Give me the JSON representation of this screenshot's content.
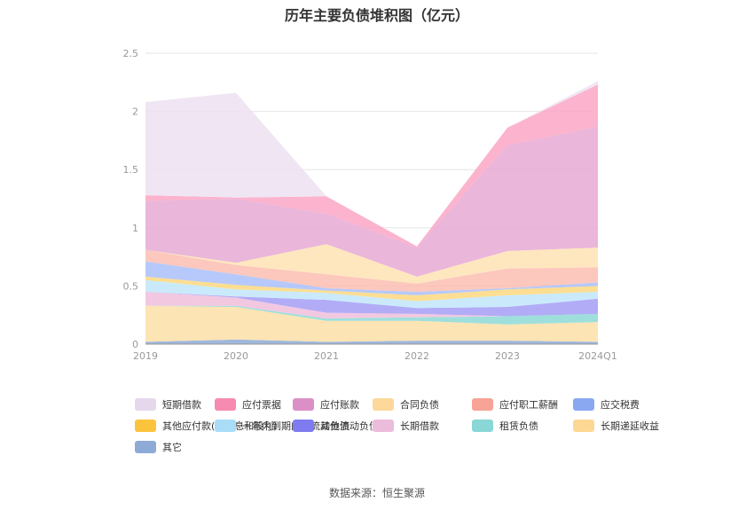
{
  "source_text": "数据来源：恒生聚源",
  "chart_data": {
    "type": "area",
    "stacked": true,
    "title": "历年主要负债堆积图（亿元）",
    "xlabel": "",
    "ylabel": "",
    "categories": [
      "2019",
      "2020",
      "2021",
      "2022",
      "2023",
      "2024Q1"
    ],
    "ylim": [
      0,
      2.5
    ],
    "yticks": [
      "0",
      "0.5",
      "1",
      "1.5",
      "2",
      "2.5"
    ],
    "grid": true,
    "legend_position": "bottom",
    "series": [
      {
        "name": "其它",
        "color": "#8eaad6",
        "values": [
          0.02,
          0.04,
          0.02,
          0.03,
          0.03,
          0.02
        ]
      },
      {
        "name": "长期递延收益",
        "color": "#fddfa7",
        "values": [
          0.31,
          0.28,
          0.18,
          0.17,
          0.14,
          0.17
        ]
      },
      {
        "name": "租赁负债",
        "color": "#8dd9d6",
        "values": [
          0.0,
          0.01,
          0.02,
          0.03,
          0.07,
          0.07
        ]
      },
      {
        "name": "长期借款",
        "color": "#f0bedc",
        "values": [
          0.12,
          0.07,
          0.05,
          0.03,
          0.0,
          0.0
        ]
      },
      {
        "name": "其他流动负债",
        "color": "#a49ef5",
        "values": [
          0.0,
          0.01,
          0.11,
          0.05,
          0.08,
          0.13
        ]
      },
      {
        "name": "一年内到期的非流动负债",
        "color": "#c1e6fa",
        "values": [
          0.1,
          0.06,
          0.06,
          0.06,
          0.1,
          0.06
        ]
      },
      {
        "name": "其他应付款(含利息和股利)",
        "color": "#fdd87f",
        "values": [
          0.03,
          0.04,
          0.02,
          0.05,
          0.05,
          0.05
        ]
      },
      {
        "name": "应交税费",
        "color": "#a9bff9",
        "values": [
          0.13,
          0.09,
          0.02,
          0.03,
          0.01,
          0.03
        ]
      },
      {
        "name": "应付职工薪酬",
        "color": "#fcbdb2",
        "values": [
          0.1,
          0.08,
          0.12,
          0.07,
          0.17,
          0.13
        ]
      },
      {
        "name": "合同负债",
        "color": "#fee3b4",
        "values": [
          0.0,
          0.02,
          0.26,
          0.06,
          0.15,
          0.17
        ]
      },
      {
        "name": "应付账款",
        "color": "#e6a9d3",
        "values": [
          0.42,
          0.55,
          0.26,
          0.25,
          0.91,
          1.04
        ]
      },
      {
        "name": "应付票据",
        "color": "#fba6c6",
        "values": [
          0.05,
          0.01,
          0.15,
          0.01,
          0.15,
          0.36
        ]
      },
      {
        "name": "短期借款",
        "color": "#ede1f1",
        "values": [
          0.8,
          0.9,
          0.0,
          0.0,
          0.0,
          0.03
        ]
      }
    ]
  },
  "legend_order": [
    "短期借款",
    "应付票据",
    "应付账款",
    "合同负债",
    "应付职工薪酬",
    "应交税费",
    "其他应付款(含利息和股利)",
    "一年内到期的非流动负债",
    "其他流动负债",
    "长期借款",
    "租赁负债",
    "长期递延收益",
    "其它"
  ],
  "legend_colors": [
    "#e5d8ed",
    "#f78ab0",
    "#dc8fc7",
    "#fdd89a",
    "#f7a396",
    "#8aa8f2",
    "#fcc33c",
    "#a8dcf7",
    "#7e7cf0",
    "#ebbcdc",
    "#89d7d6",
    "#fdd895",
    "#8eaad6"
  ]
}
